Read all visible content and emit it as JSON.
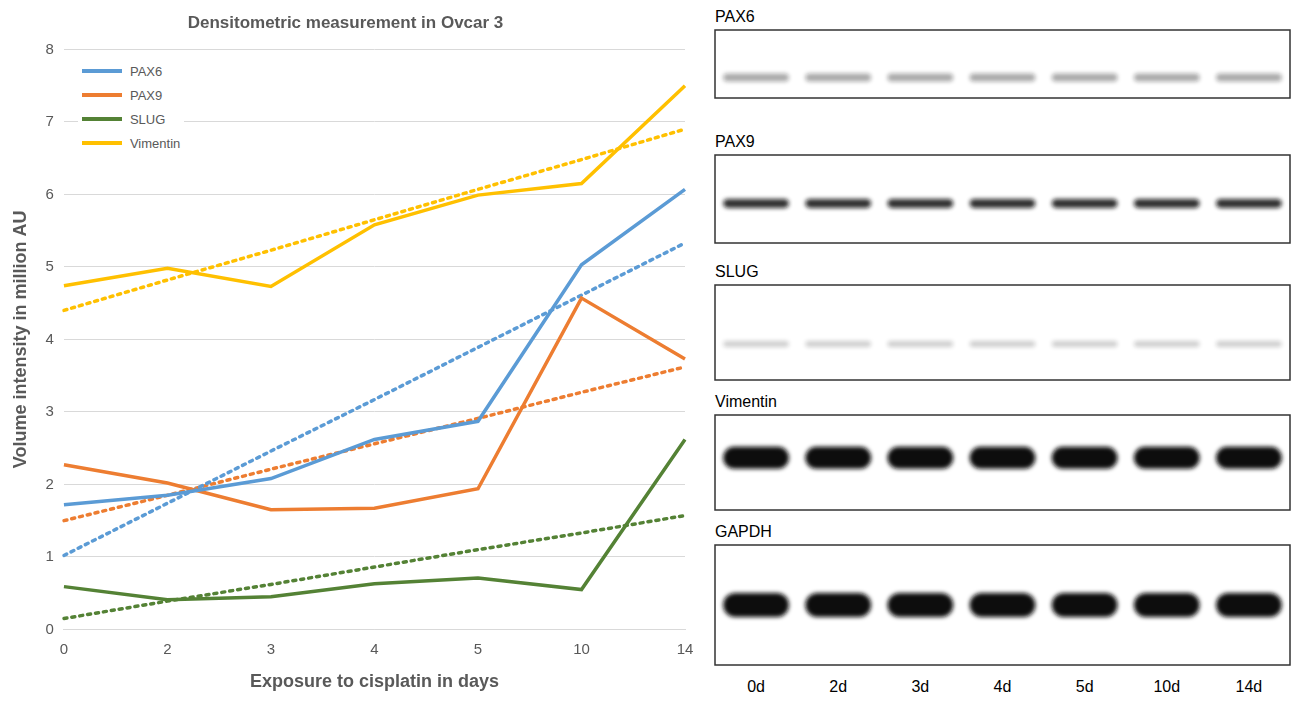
{
  "chart_data": {
    "type": "line",
    "title": "Densitometric measurement in Ovcar 3",
    "x_label": "Exposure to cisplatin in days",
    "y_label": "Volume intensity in million AU",
    "categories": [
      "0",
      "2",
      "3",
      "4",
      "5",
      "10",
      "14"
    ],
    "series": [
      {
        "name": "PAX6",
        "color": "#5b9bd5",
        "values": [
          1.72,
          1.85,
          2.08,
          2.62,
          2.87,
          5.03,
          6.07
        ],
        "trend": [
          1.02,
          1.74,
          2.46,
          3.17,
          3.89,
          4.61,
          5.33
        ]
      },
      {
        "name": "PAX9",
        "color": "#ed7d31",
        "values": [
          2.27,
          2.02,
          1.65,
          1.67,
          1.94,
          4.57,
          3.73
        ],
        "trend": [
          1.5,
          1.85,
          2.21,
          2.56,
          2.91,
          3.27,
          3.62
        ]
      },
      {
        "name": "SLUG",
        "color": "#548235",
        "values": [
          0.59,
          0.41,
          0.45,
          0.63,
          0.71,
          0.55,
          2.62
        ],
        "trend": [
          0.15,
          0.39,
          0.62,
          0.86,
          1.1,
          1.33,
          1.57
        ]
      },
      {
        "name": "Vimentin",
        "color": "#ffc000",
        "values": [
          4.74,
          4.98,
          4.73,
          5.58,
          5.99,
          6.15,
          7.5
        ],
        "trend": [
          4.4,
          4.82,
          5.23,
          5.65,
          6.07,
          6.48,
          6.9
        ]
      }
    ],
    "ylim": [
      0,
      8
    ],
    "yticks": [
      0,
      1,
      2,
      3,
      4,
      5,
      6,
      7,
      8
    ],
    "grid": true,
    "legend": "upper left"
  },
  "blot": {
    "panels": [
      "PAX6",
      "PAX9",
      "SLUG",
      "Vimentin",
      "GAPDH"
    ],
    "lanes": [
      "0d",
      "2d",
      "3d",
      "4d",
      "5d",
      "10d",
      "14d"
    ]
  }
}
